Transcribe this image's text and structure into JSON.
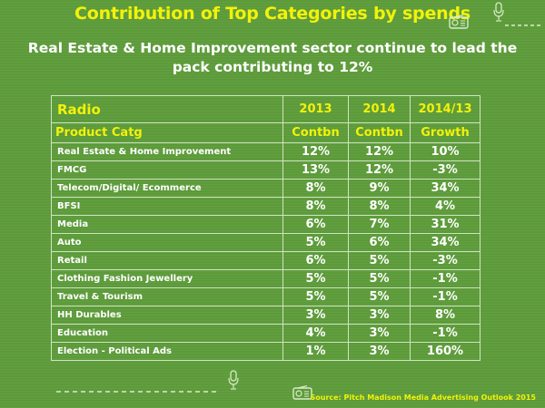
{
  "header": {
    "title": "Contribution of Top Categories by spends",
    "subtitle": "Real Estate & Home Improvement sector continue to lead the pack contributing to 12%"
  },
  "decorations": [
    "radio-icon",
    "microphone-icon",
    "dashed-line",
    "microphone-icon",
    "radio-icon"
  ],
  "colors": {
    "background": "#5e9d3b",
    "accent": "#f2f20a",
    "text": "#ffffff",
    "border": "#cfe5c0"
  },
  "table": {
    "medium": "Radio",
    "years": [
      "2013",
      "2014",
      "2014/13"
    ],
    "columns": [
      "Product Catg",
      "Contbn",
      "Contbn",
      "Growth"
    ],
    "rows": [
      {
        "category": "Real Estate & Home Improvement",
        "c2013": "12%",
        "c2014": "12%",
        "growth": "10%"
      },
      {
        "category": "FMCG",
        "c2013": "13%",
        "c2014": "12%",
        "growth": "-3%"
      },
      {
        "category": "Telecom/Digital/ Ecommerce",
        "c2013": "8%",
        "c2014": "9%",
        "growth": "34%"
      },
      {
        "category": "BFSI",
        "c2013": "8%",
        "c2014": "8%",
        "growth": "4%"
      },
      {
        "category": "Media",
        "c2013": "6%",
        "c2014": "7%",
        "growth": "31%"
      },
      {
        "category": "Auto",
        "c2013": "5%",
        "c2014": "6%",
        "growth": "34%"
      },
      {
        "category": "Retail",
        "c2013": "6%",
        "c2014": "5%",
        "growth": "-3%"
      },
      {
        "category": "Clothing Fashion Jewellery",
        "c2013": "5%",
        "c2014": "5%",
        "growth": "-1%"
      },
      {
        "category": "Travel & Tourism",
        "c2013": "5%",
        "c2014": "5%",
        "growth": "-1%"
      },
      {
        "category": "HH Durables",
        "c2013": "3%",
        "c2014": "3%",
        "growth": "8%"
      },
      {
        "category": "Education",
        "c2013": "4%",
        "c2014": "3%",
        "growth": "-1%"
      },
      {
        "category": "Election - Political Ads",
        "c2013": "1%",
        "c2014": "3%",
        "growth": "160%"
      }
    ]
  },
  "footer": {
    "source": "Source: Pitch Madison Media Advertising Outlook 2015"
  }
}
